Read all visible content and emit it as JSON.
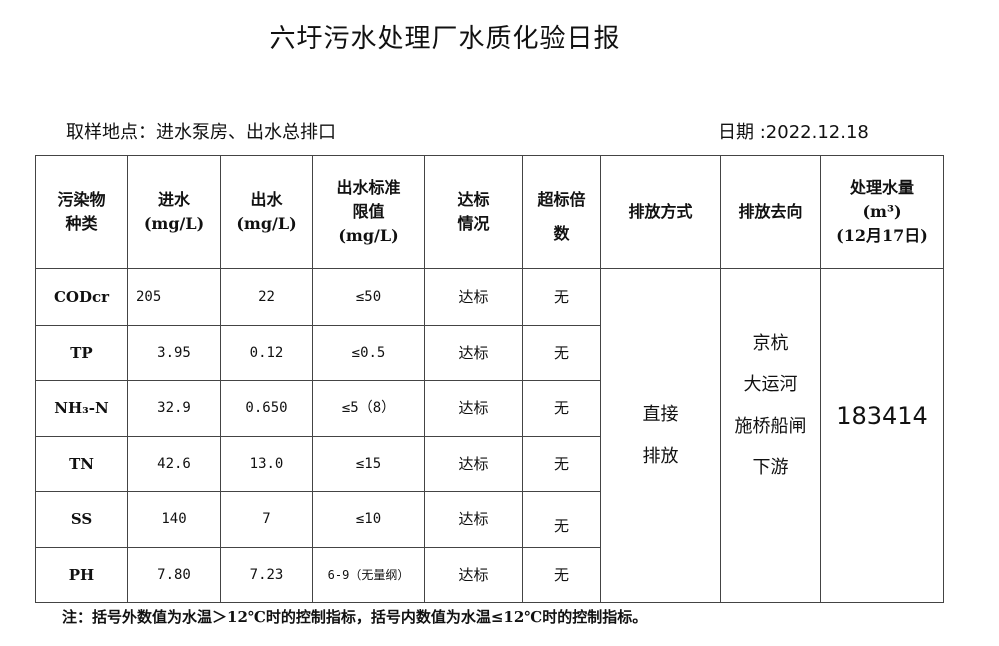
{
  "title": "六圩污水处理厂水质化验日报",
  "location": "取样地点：进水泵房、出水总排口",
  "date": "日期 :2022.12.18",
  "headers": {
    "pollutant": [
      "污染物",
      "种类"
    ],
    "inflow": [
      "进水",
      "(mg/L)"
    ],
    "outflow": [
      "出水",
      "(mg/L)"
    ],
    "limit": [
      "出水标准",
      "限值",
      "(mg/L)"
    ],
    "status": [
      "达标",
      "情况"
    ],
    "exceed": [
      "超标倍",
      "数"
    ],
    "method": "排放方式",
    "destination": "排放去向",
    "volume": [
      "处理水量",
      "(m³)",
      "(12月17日)"
    ]
  },
  "rows": [
    {
      "name": "CODcr",
      "in": "205",
      "out": "22",
      "limit": "≤50",
      "status": "达标",
      "exceed": "无"
    },
    {
      "name": "TP",
      "in": "3.95",
      "out": "0.12",
      "limit": "≤0.5",
      "status": "达标",
      "exceed": "无"
    },
    {
      "name": "NH₃-N",
      "in": "32.9",
      "out": "0.650",
      "limit": "≤5（8）",
      "status": "达标",
      "exceed": "无"
    },
    {
      "name": "TN",
      "in": "42.6",
      "out": "13.0",
      "limit": "≤15",
      "status": "达标",
      "exceed": "无"
    },
    {
      "name": "SS",
      "in": "140",
      "out": "7",
      "limit": "≤10",
      "status": "达标",
      "exceed": "无"
    },
    {
      "name": "PH",
      "in": "7.80",
      "out": "7.23",
      "limit": "6-9（无量纲）",
      "status": "达标",
      "exceed": "无"
    }
  ],
  "method": [
    "直接",
    "排放"
  ],
  "destination": [
    "京杭",
    "大运河",
    "施桥船闸",
    "下游"
  ],
  "volume": "183414",
  "note": "注：括号外数值为水温＞12℃时的控制指标，括号内数值为水温≤12℃时的控制指标。"
}
